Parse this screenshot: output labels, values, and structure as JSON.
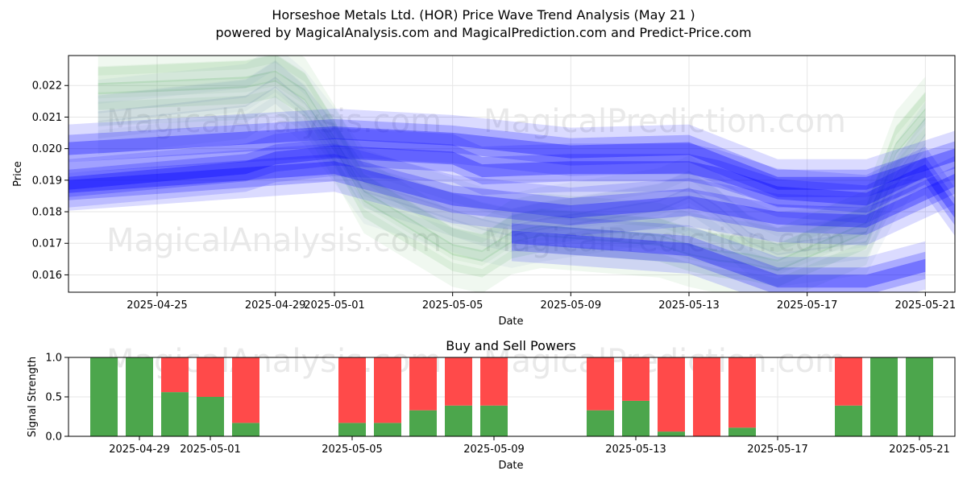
{
  "title": "Horseshoe Metals Ltd. (HOR) Price Wave Trend Analysis (May 21 )",
  "subtitle": "powered by MagicalAnalysis.com and MagicalPrediction.com and Predict-Price.com",
  "watermarks": [
    "MagicalAnalysis.com",
    "MagicalPrediction.com"
  ],
  "colors": {
    "up_band": "#2ca02c",
    "forecast_band": "#0000ff",
    "buy": "#4ca64c",
    "sell": "#ff4a4a",
    "grid": "#e6e6e6"
  },
  "chart_data": [
    {
      "type": "area",
      "title": "",
      "xlabel": "Date",
      "ylabel": "Price",
      "xlim": [
        "2025-04-22",
        "2025-05-22"
      ],
      "ylim": [
        0.01545,
        0.02295
      ],
      "x_ticks": [
        "2025-04-25",
        "2025-04-29",
        "2025-05-01",
        "2025-05-05",
        "2025-05-09",
        "2025-05-13",
        "2025-05-17",
        "2025-05-21"
      ],
      "y_ticks": [
        0.016,
        0.017,
        0.018,
        0.019,
        0.02,
        0.021,
        0.022
      ],
      "grid": true,
      "series": [
        {
          "color": "#2ca02c",
          "x": [
            "2025-04-23",
            "2025-04-28",
            "2025-04-29",
            "2025-04-30",
            "2025-05-01",
            "2025-05-02",
            "2025-05-05",
            "2025-05-06",
            "2025-05-07",
            "2025-05-08",
            "2025-05-12",
            "2025-05-13",
            "2025-05-14",
            "2025-05-15",
            "2025-05-16",
            "2025-05-19",
            "2025-05-20",
            "2025-05-21"
          ],
          "y": [
            0.0219,
            0.0221,
            0.0223,
            0.0217,
            0.0202,
            0.0185,
            0.0168,
            0.0166,
            0.0172,
            0.0174,
            0.0171,
            0.0168,
            0.0166,
            0.0165,
            0.0163,
            0.0175,
            0.02,
            0.0211
          ]
        },
        {
          "color": "#5c7fa3",
          "x": [
            "2025-04-23",
            "2025-04-28",
            "2025-04-29",
            "2025-04-30",
            "2025-05-01",
            "2025-05-02",
            "2025-05-05",
            "2025-05-06",
            "2025-05-07",
            "2025-05-08",
            "2025-05-12",
            "2025-05-13",
            "2025-05-14",
            "2025-05-15",
            "2025-05-16",
            "2025-05-19",
            "2025-05-20",
            "2025-05-21"
          ],
          "y": [
            0.021,
            0.0215,
            0.0221,
            0.0213,
            0.0201,
            0.0188,
            0.0179,
            0.0176,
            0.0174,
            0.0176,
            0.0182,
            0.0186,
            0.018,
            0.0172,
            0.0168,
            0.0172,
            0.019,
            0.0203
          ]
        },
        {
          "color": "#0000ff",
          "x": [
            "2025-04-22",
            "2025-04-28",
            "2025-04-29",
            "2025-05-01",
            "2025-05-05",
            "2025-05-06",
            "2025-05-09",
            "2025-05-13",
            "2025-05-14",
            "2025-05-16",
            "2025-05-19",
            "2025-05-21",
            "2025-05-22"
          ],
          "y": [
            0.0189,
            0.0194,
            0.0197,
            0.0199,
            0.0197,
            0.0193,
            0.0194,
            0.0194,
            0.0192,
            0.0186,
            0.0184,
            0.0193,
            0.018
          ]
        },
        {
          "color": "#0000ff",
          "x": [
            "2025-04-22",
            "2025-05-01",
            "2025-05-05",
            "2025-05-09",
            "2025-05-13",
            "2025-05-16",
            "2025-05-19",
            "2025-05-22"
          ],
          "y": [
            0.0188,
            0.0194,
            0.0184,
            0.018,
            0.0183,
            0.0178,
            0.0177,
            0.019
          ]
        },
        {
          "color": "#0000ff",
          "x": [
            "2025-04-22",
            "2025-05-01",
            "2025-05-05",
            "2025-05-09",
            "2025-05-13",
            "2025-05-16",
            "2025-05-19",
            "2025-05-22"
          ],
          "y": [
            0.02,
            0.0205,
            0.0203,
            0.0199,
            0.02,
            0.0189,
            0.0189,
            0.0198
          ]
        },
        {
          "color": "#0000ff",
          "x": [
            "2025-05-07",
            "2025-05-10",
            "2025-05-13",
            "2025-05-16",
            "2025-05-19",
            "2025-05-21"
          ],
          "y": [
            0.0172,
            0.017,
            0.0168,
            0.0158,
            0.0158,
            0.0163
          ]
        }
      ]
    },
    {
      "type": "bar",
      "title": "Buy and Sell Powers",
      "xlabel": "Date",
      "ylabel": "Signal Strength",
      "xlim": [
        "2025-04-27",
        "2025-05-22"
      ],
      "ylim": [
        0,
        1
      ],
      "x_ticks": [
        "2025-04-29",
        "2025-05-01",
        "2025-05-05",
        "2025-05-09",
        "2025-05-13",
        "2025-05-17",
        "2025-05-21"
      ],
      "y_ticks": [
        "0.0",
        "0.5",
        "1.0"
      ],
      "grid": true,
      "categories": [
        "2025-04-28",
        "2025-04-29",
        "2025-04-30",
        "2025-05-01",
        "2025-05-02",
        "2025-05-05",
        "2025-05-06",
        "2025-05-07",
        "2025-05-08",
        "2025-05-09",
        "2025-05-12",
        "2025-05-13",
        "2025-05-14",
        "2025-05-15",
        "2025-05-16",
        "2025-05-19",
        "2025-05-20",
        "2025-05-21"
      ],
      "series": [
        {
          "color": "#4ca64c",
          "values": [
            1.0,
            1.0,
            0.56,
            0.5,
            0.17,
            0.17,
            0.17,
            0.33,
            0.39,
            0.39,
            0.33,
            0.45,
            0.06,
            0.0,
            0.11,
            0.39,
            1.0,
            1.0
          ]
        },
        {
          "color": "#ff4a4a",
          "values": [
            0.0,
            0.0,
            0.44,
            0.5,
            0.83,
            0.83,
            0.83,
            0.67,
            0.61,
            0.61,
            0.67,
            0.55,
            0.94,
            1.0,
            0.89,
            0.61,
            0.0,
            0.0
          ]
        }
      ]
    }
  ]
}
